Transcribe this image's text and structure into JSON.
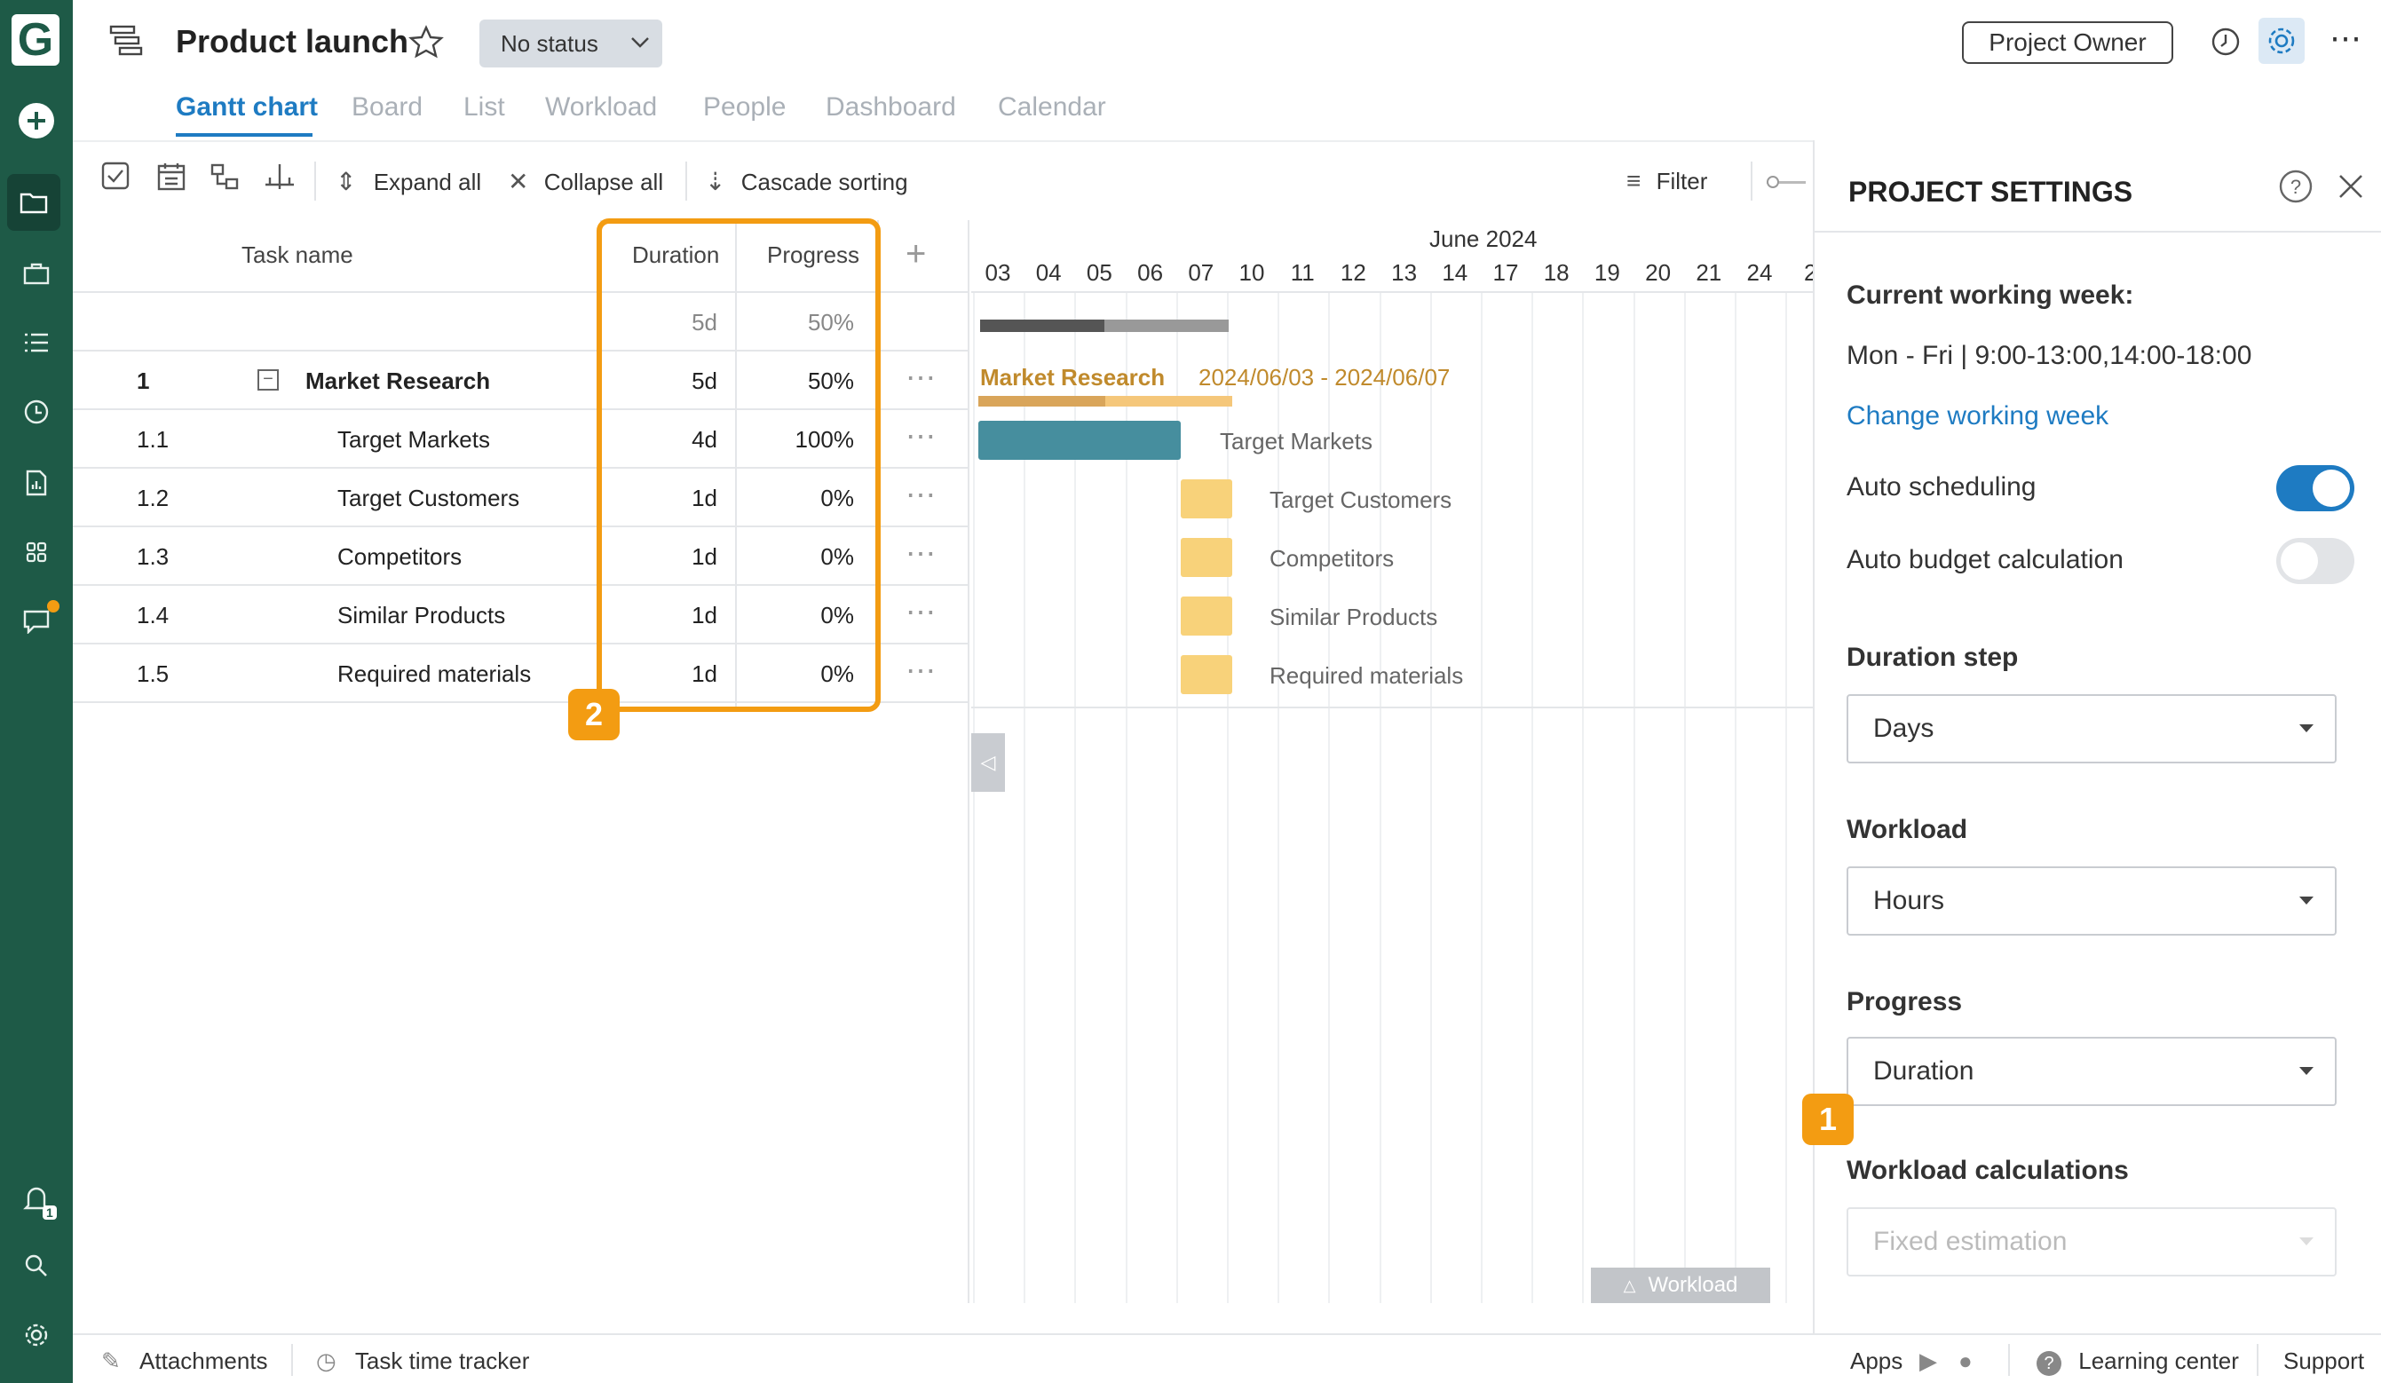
{
  "app": {
    "logo_letter": "G"
  },
  "header": {
    "title": "Product launch",
    "status": "No status",
    "owner": "Project Owner",
    "tabs": [
      "Gantt chart",
      "Board",
      "List",
      "Workload",
      "People",
      "Dashboard",
      "Calendar"
    ]
  },
  "toolbar": {
    "expand": "Expand all",
    "collapse": "Collapse all",
    "cascade": "Cascade sorting",
    "filter": "Filter"
  },
  "grid": {
    "headers": {
      "task": "Task name",
      "duration": "Duration",
      "progress": "Progress"
    },
    "summary": {
      "duration": "5d",
      "progress": "50%"
    },
    "rows": [
      {
        "id": "1",
        "name": "Market Research",
        "duration": "5d",
        "progress": "50%"
      },
      {
        "id": "1.1",
        "name": "Target Markets",
        "duration": "4d",
        "progress": "100%"
      },
      {
        "id": "1.2",
        "name": "Target Customers",
        "duration": "1d",
        "progress": "0%"
      },
      {
        "id": "1.3",
        "name": "Competitors",
        "duration": "1d",
        "progress": "0%"
      },
      {
        "id": "1.4",
        "name": "Similar Products",
        "duration": "1d",
        "progress": "0%"
      },
      {
        "id": "1.5",
        "name": "Required materials",
        "duration": "1d",
        "progress": "0%"
      }
    ]
  },
  "timeline": {
    "month": "June 2024",
    "days": [
      "03",
      "04",
      "05",
      "06",
      "07",
      "10",
      "11",
      "12",
      "13",
      "14",
      "17",
      "18",
      "19",
      "20",
      "21",
      "24",
      "2"
    ],
    "parent_label": "Market Research",
    "parent_dates": "2024/06/03 - 2024/06/07",
    "workload_tab": "Workload",
    "colors": {
      "parent": "#f5c77a",
      "done": "#468e9e",
      "todo": "#f8d27a"
    }
  },
  "callouts": {
    "one": "1",
    "two": "2"
  },
  "panel": {
    "title": "PROJECT SETTINGS",
    "working_week_label": "Current working week:",
    "working_week_value": "Mon - Fri | 9:00-13:00,14:00-18:00",
    "change_link": "Change working week",
    "auto_scheduling": "Auto scheduling",
    "auto_budget": "Auto budget calculation",
    "duration_step_label": "Duration step",
    "duration_step_value": "Days",
    "workload_label": "Workload",
    "workload_value": "Hours",
    "progress_label": "Progress",
    "progress_value": "Duration",
    "workload_calc_label": "Workload calculations",
    "workload_calc_value": "Fixed estimation"
  },
  "bottombar": {
    "attachments": "Attachments",
    "time_tracker": "Task time tracker",
    "apps": "Apps",
    "learning": "Learning center",
    "support": "Support"
  },
  "notifications": {
    "count": "1"
  }
}
